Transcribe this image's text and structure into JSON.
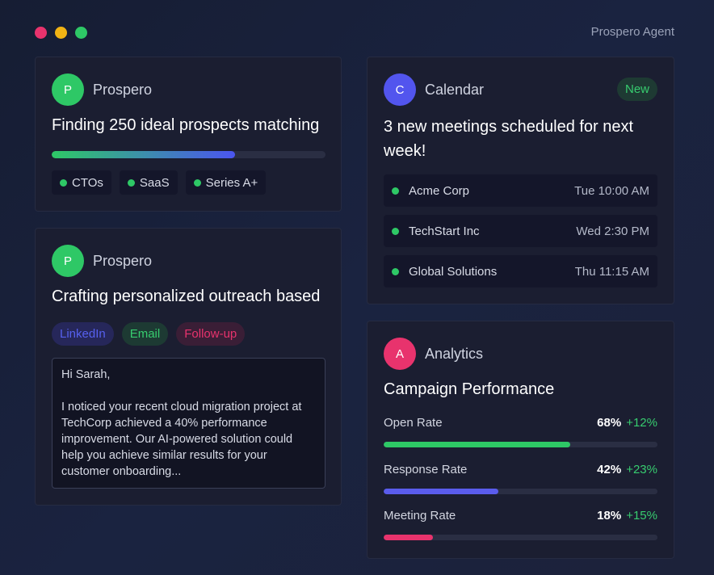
{
  "window": {
    "title": "Prospero Agent",
    "traffic_colors": [
      "#e8336d",
      "#f1b314",
      "#2ec866"
    ]
  },
  "cards": {
    "prospecting": {
      "agent_initial": "P",
      "agent_name": "Prospero",
      "avatar_color": "#2ec866",
      "headline": "Finding 250 ideal prospects matching",
      "progress": 0.67,
      "tags": [
        "CTOs",
        "SaaS",
        "Series A+"
      ]
    },
    "outreach": {
      "agent_initial": "P",
      "agent_name": "Prospero",
      "avatar_color": "#2ec866",
      "headline": "Crafting personalized outreach based",
      "channels": [
        {
          "label": "LinkedIn",
          "color": "#5660ee",
          "bg": "#26275a"
        },
        {
          "label": "Email",
          "color": "#37cc6f",
          "bg": "#1d3a33"
        },
        {
          "label": "Follow-up",
          "color": "#e8336d",
          "bg": "#3a1e36"
        }
      ],
      "email_body": "Hi Sarah,\n\nI noticed your recent cloud migration project at TechCorp achieved a 40% performance improvement. Our AI-powered solution could help you achieve similar results for your customer onboarding..."
    },
    "calendar": {
      "agent_initial": "C",
      "agent_name": "Calendar",
      "avatar_color": "#5255ee",
      "badge": "New",
      "headline": "3 new meetings scheduled for next week!",
      "meetings": [
        {
          "company": "Acme Corp",
          "time": "Tue 10:00 AM"
        },
        {
          "company": "TechStart Inc",
          "time": "Wed 2:30 PM"
        },
        {
          "company": "Global Solutions",
          "time": "Thu 11:15 AM"
        }
      ]
    },
    "analytics": {
      "agent_initial": "A",
      "agent_name": "Analytics",
      "avatar_color": "#e8336d",
      "headline": "Campaign Performance",
      "metrics": [
        {
          "label": "Open Rate",
          "value": "68%",
          "change": "+12%",
          "fraction": 0.68,
          "color": "#2ec866"
        },
        {
          "label": "Response Rate",
          "value": "42%",
          "change": "+23%",
          "fraction": 0.42,
          "color": "#5a5cec"
        },
        {
          "label": "Meeting Rate",
          "value": "18%",
          "change": "+15%",
          "fraction": 0.18,
          "color": "#e8336d"
        }
      ]
    }
  }
}
